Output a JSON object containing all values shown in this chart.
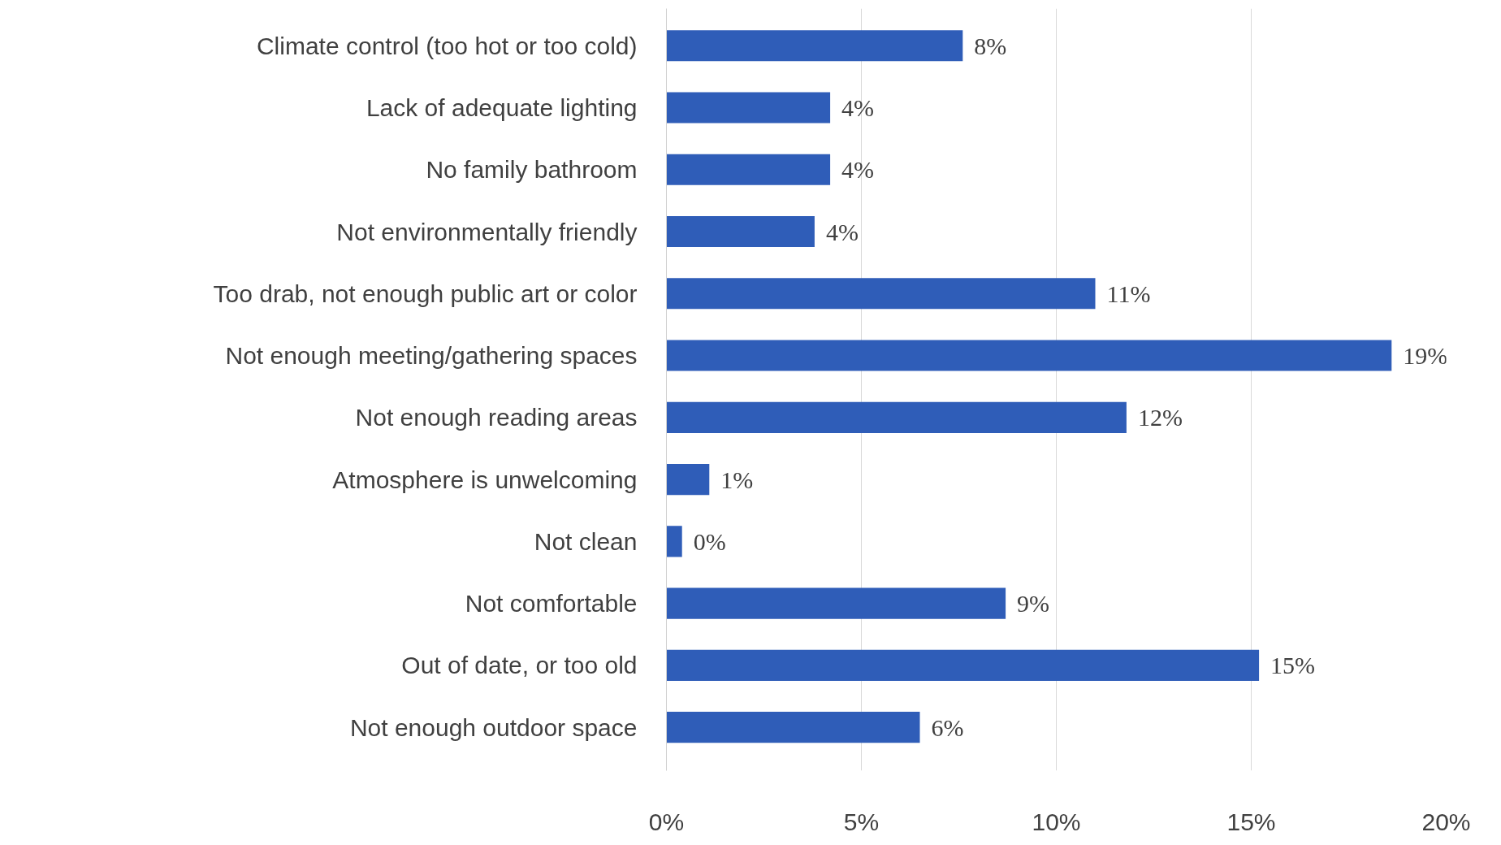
{
  "chart_data": {
    "type": "bar",
    "orientation": "horizontal",
    "categories": [
      "Climate control (too hot or too cold)",
      "Lack of adequate lighting",
      "No family bathroom",
      "Not environmentally friendly",
      "Too drab, not enough public art or color",
      "Not enough meeting/gathering spaces",
      "Not enough reading areas",
      "Atmosphere is unwelcoming",
      "Not clean",
      "Not comfortable",
      "Out of date, or too old",
      "Not enough outdoor space"
    ],
    "values": [
      7.6,
      4.2,
      4.2,
      3.8,
      11.0,
      18.6,
      11.8,
      1.1,
      0.4,
      8.7,
      15.2,
      6.5
    ],
    "value_labels": [
      "8%",
      "4%",
      "4%",
      "4%",
      "11%",
      "19%",
      "12%",
      "1%",
      "0%",
      "9%",
      "15%",
      "6%"
    ],
    "color": "#2f5db8",
    "xlim": [
      0,
      20
    ],
    "xticks": [
      {
        "value": 0,
        "label": "0%"
      },
      {
        "value": 5,
        "label": "5%"
      },
      {
        "value": 10,
        "label": "10%"
      },
      {
        "value": 15,
        "label": "15%"
      },
      {
        "value": 20,
        "label": "20%"
      }
    ],
    "grid": "x"
  }
}
